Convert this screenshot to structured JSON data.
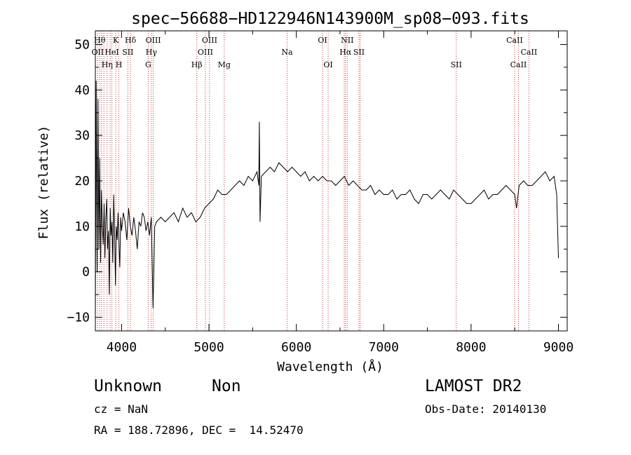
{
  "chart_data": {
    "type": "line",
    "title": "spec−56688−HD122946N143900M_sp08−093.fits",
    "xlabel": "Wavelength (Å)",
    "ylabel": "Flux (relative)",
    "xlim": [
      3700,
      9100
    ],
    "ylim": [
      -13,
      53
    ],
    "xticks": [
      4000,
      5000,
      6000,
      7000,
      8000,
      9000
    ],
    "yticks": [
      -10,
      0,
      10,
      20,
      30,
      40,
      50
    ],
    "xtick_labels": [
      "4000",
      "5000",
      "6000",
      "7000",
      "8000",
      "9000"
    ],
    "ytick_labels": [
      "−10",
      "0",
      "10",
      "20",
      "30",
      "40",
      "50"
    ],
    "grid": false,
    "line_color": "#cc3333",
    "series_color": "#000000",
    "lines": [
      {
        "x": 3727,
        "label": "OII",
        "row": 1
      },
      {
        "x": 3750,
        "label": "Hθ",
        "row": 0
      },
      {
        "x": 3771,
        "label": "",
        "row": 1
      },
      {
        "x": 3798,
        "label": "",
        "row": 2
      },
      {
        "x": 3835,
        "label": "Hη",
        "row": 2
      },
      {
        "x": 3869,
        "label": "",
        "row": 1
      },
      {
        "x": 3889,
        "label": "HeI",
        "row": 1
      },
      {
        "x": 3934,
        "label": "K",
        "row": 0
      },
      {
        "x": 3969,
        "label": "H",
        "row": 2
      },
      {
        "x": 4072,
        "label": "SII",
        "row": 1
      },
      {
        "x": 4102,
        "label": "Hδ",
        "row": 0
      },
      {
        "x": 4305,
        "label": "G",
        "row": 2
      },
      {
        "x": 4341,
        "label": "Hγ",
        "row": 1
      },
      {
        "x": 4363,
        "label": "OIII",
        "row": 0
      },
      {
        "x": 4861,
        "label": "Hβ",
        "row": 2
      },
      {
        "x": 4959,
        "label": "OIII",
        "row": 1
      },
      {
        "x": 5007,
        "label": "OIII",
        "row": 0
      },
      {
        "x": 5175,
        "label": "Mg",
        "row": 2
      },
      {
        "x": 5894,
        "label": "Na",
        "row": 1
      },
      {
        "x": 6300,
        "label": "OI",
        "row": 0
      },
      {
        "x": 6364,
        "label": "OI",
        "row": 2
      },
      {
        "x": 6548,
        "label": "",
        "row": 1
      },
      {
        "x": 6563,
        "label": "Hα",
        "row": 1
      },
      {
        "x": 6583,
        "label": "NII",
        "row": 0
      },
      {
        "x": 6717,
        "label": "SII",
        "row": 1
      },
      {
        "x": 6731,
        "label": "",
        "row": 1
      },
      {
        "x": 7830,
        "label": "SII",
        "row": 2
      },
      {
        "x": 8498,
        "label": "CaII",
        "row": 0
      },
      {
        "x": 8542,
        "label": "CaII",
        "row": 2
      },
      {
        "x": 8662,
        "label": "CaII",
        "row": 1
      }
    ],
    "series": [
      {
        "x": [
          3700,
          3710,
          3720,
          3730,
          3740,
          3750,
          3760,
          3770,
          3780,
          3790,
          3800,
          3810,
          3820,
          3830,
          3840,
          3850,
          3860,
          3870,
          3880,
          3890,
          3900,
          3910,
          3920,
          3930,
          3940,
          3950,
          3960,
          3970,
          3980,
          3990,
          4000,
          4020,
          4040,
          4060,
          4080,
          4100,
          4120,
          4140,
          4160,
          4180,
          4200,
          4220,
          4240,
          4260,
          4280,
          4300,
          4320,
          4340,
          4360,
          4380,
          4400,
          4450,
          4500,
          4550,
          4600,
          4650,
          4700,
          4750,
          4800,
          4850,
          4900,
          4950,
          5000,
          5050,
          5100,
          5150,
          5200,
          5250,
          5300,
          5350,
          5400,
          5450,
          5500,
          5550,
          5570,
          5577,
          5585,
          5600,
          5650,
          5700,
          5750,
          5800,
          5850,
          5900,
          5950,
          6000,
          6050,
          6100,
          6150,
          6200,
          6250,
          6300,
          6350,
          6400,
          6450,
          6500,
          6550,
          6600,
          6650,
          6700,
          6750,
          6800,
          6850,
          6900,
          6950,
          7000,
          7050,
          7100,
          7150,
          7200,
          7250,
          7300,
          7350,
          7400,
          7450,
          7500,
          7550,
          7600,
          7650,
          7700,
          7750,
          7800,
          7850,
          7900,
          7950,
          8000,
          8050,
          8100,
          8150,
          8200,
          8250,
          8300,
          8350,
          8400,
          8450,
          8500,
          8520,
          8550,
          8600,
          8650,
          8700,
          8750,
          8800,
          8850,
          8900,
          8950,
          8980,
          9000
        ],
        "values": [
          -10,
          42,
          0,
          38,
          5,
          25,
          2,
          18,
          10,
          6,
          15,
          3,
          12,
          16,
          5,
          9,
          -5,
          14,
          8,
          11,
          2,
          17,
          9,
          -3,
          10,
          7,
          13,
          6,
          1,
          12,
          9,
          13,
          11,
          7,
          14,
          10,
          8,
          12,
          9,
          5,
          11,
          10,
          13,
          12,
          9,
          11,
          8,
          12,
          -8,
          10,
          11,
          12,
          11,
          12,
          13,
          11,
          14,
          12,
          13,
          11,
          12,
          14,
          15,
          16,
          18,
          17,
          17,
          18,
          19,
          20,
          19,
          21,
          20,
          22,
          19,
          33,
          11,
          21,
          22,
          23,
          22,
          24,
          23,
          22,
          23,
          22,
          21,
          22,
          20,
          21,
          20,
          21,
          20,
          20,
          19,
          20,
          21,
          19,
          20,
          19,
          18,
          18,
          19,
          17,
          18,
          17,
          17,
          18,
          16,
          17,
          17,
          18,
          16,
          15,
          17,
          17,
          16,
          17,
          18,
          17,
          16,
          18,
          17,
          16,
          15,
          15,
          16,
          17,
          18,
          16,
          17,
          17,
          18,
          19,
          18,
          17,
          14,
          19,
          20,
          19,
          19,
          20,
          21,
          22,
          20,
          21,
          17,
          3
        ]
      }
    ]
  },
  "info": {
    "object_type": "Unknown",
    "object_subtype": "Non",
    "survey": "LAMOST DR2",
    "redshift": "cz = NaN",
    "obs_date": "Obs-Date: 20140130",
    "coords": "RA = 188.72896, DEC =  14.52470"
  }
}
